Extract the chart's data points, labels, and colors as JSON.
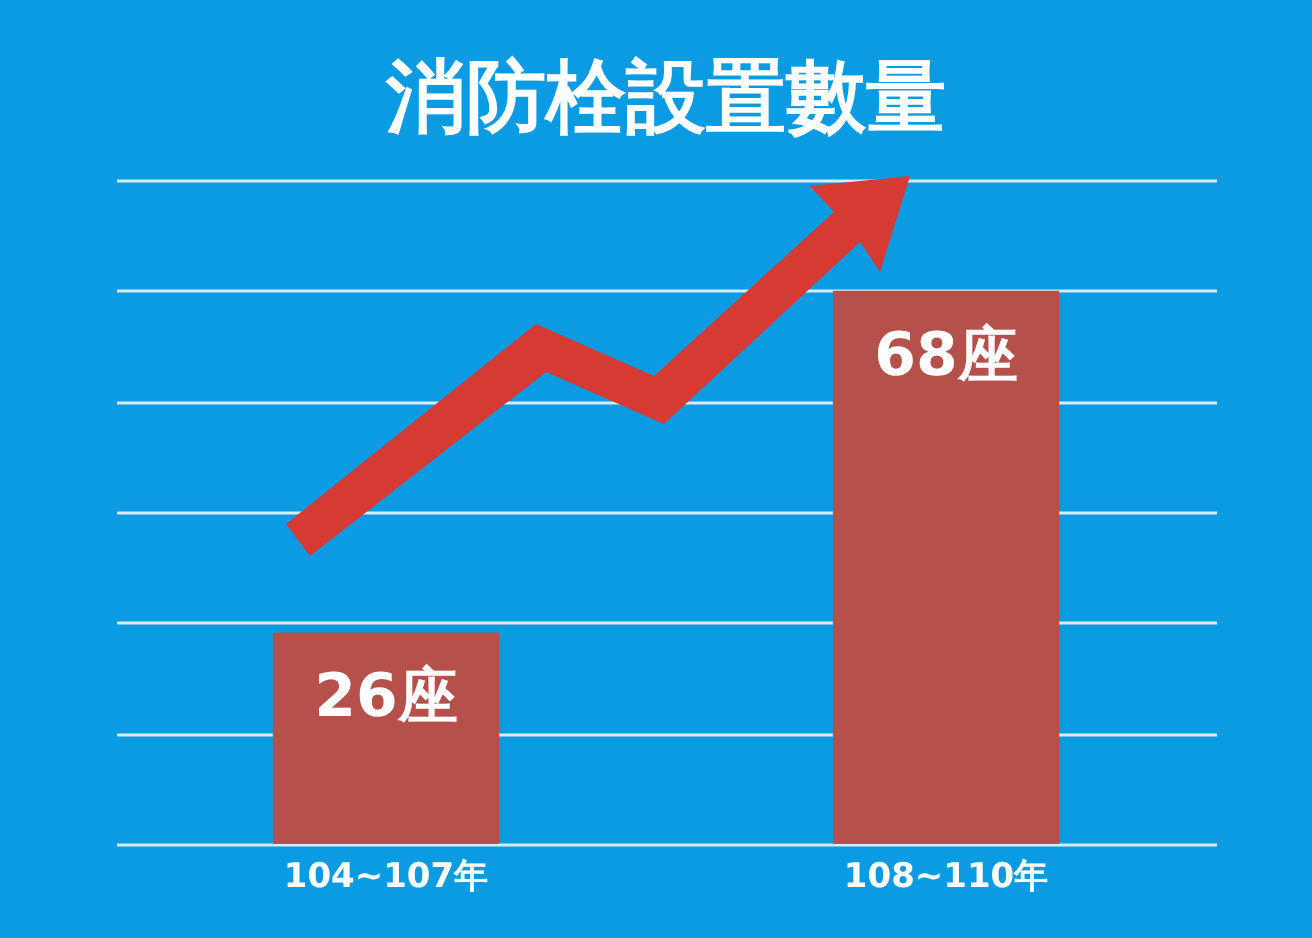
{
  "chart_data": {
    "type": "bar",
    "title": "消防栓設置數量",
    "categories": [
      "104~107年",
      "108~110年"
    ],
    "values": [
      26,
      68
    ],
    "value_labels": [
      "26座",
      "68座"
    ],
    "color": "#b5504a",
    "ylim": [
      0,
      81.6
    ],
    "yticks": [
      {
        "value": 0,
        "label": null
      },
      {
        "value": 13.6,
        "label": null
      },
      {
        "value": 27.2,
        "label": null
      },
      {
        "value": 40.8,
        "label": null
      },
      {
        "value": 54.4,
        "label": null
      },
      {
        "value": 68,
        "label": null
      },
      {
        "value": 81.6,
        "label": null
      }
    ],
    "grid": "y",
    "tick_labels": "x"
  }
}
